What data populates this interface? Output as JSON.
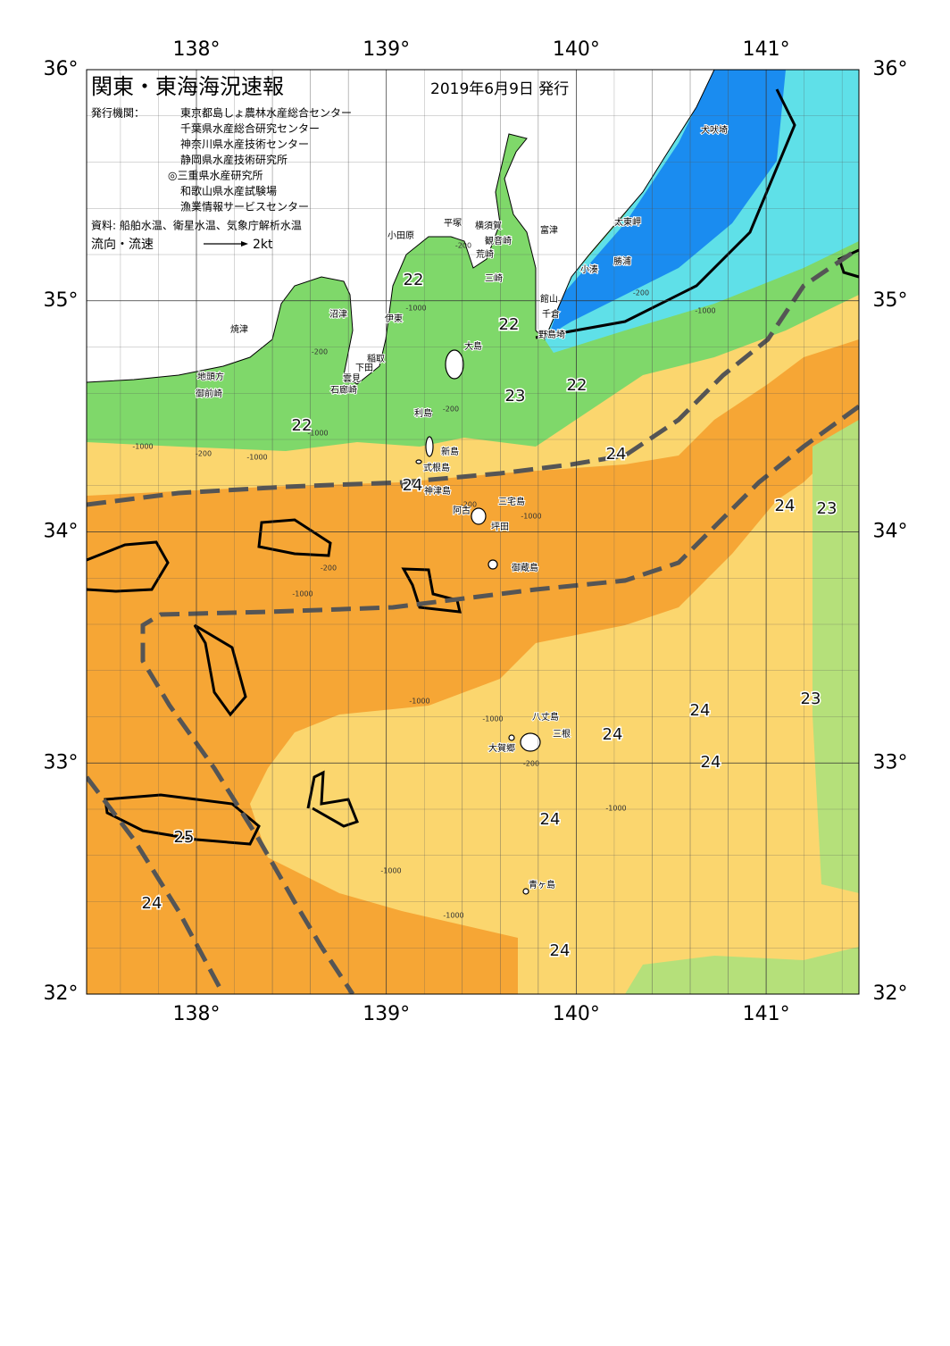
{
  "header": {
    "title": "関東・東海海況速報",
    "date": "2019年6月9日 発行",
    "issuer_label": "発行機関：",
    "issuers": [
      "東京都島しょ農林水産総合センター",
      "千葉県水産総合研究センター",
      "神奈川県水産技術センター",
      "静岡県水産技術研究所",
      "◎三重県水産研究所",
      "和歌山県水産試験場",
      "漁業情報サービスセンター"
    ],
    "source": "資料: 船舶水温、衛星水温、気象庁解析水温",
    "legend_label": "流向・流速",
    "legend_speed": "2kt"
  },
  "grid": {
    "lon_ticks": [
      {
        "value": 138,
        "label": "138°"
      },
      {
        "value": 139,
        "label": "139°"
      },
      {
        "value": 140,
        "label": "140°"
      },
      {
        "value": 141,
        "label": "141°"
      }
    ],
    "lat_ticks": [
      {
        "value": 36,
        "label": "36°"
      },
      {
        "value": 35,
        "label": "35°"
      },
      {
        "value": 34,
        "label": "34°"
      },
      {
        "value": 33,
        "label": "33°"
      },
      {
        "value": 32,
        "label": "32°"
      }
    ]
  },
  "places": [
    "犬吠埼",
    "太東岬",
    "勝浦",
    "小湊",
    "富津",
    "館山",
    "千倉",
    "野島埼",
    "横須賀",
    "観音崎",
    "平塚",
    "荒崎",
    "三崎",
    "小田原",
    "伊東",
    "沼津",
    "稲取",
    "下田",
    "雲見",
    "石廊崎",
    "焼津",
    "地頭方",
    "御前崎",
    "大島",
    "利島",
    "新島",
    "式根島",
    "神津島",
    "三宅島",
    "阿古",
    "坪田",
    "御蔵島",
    "八丈島",
    "三根",
    "大賀郷",
    "青ヶ島"
  ],
  "temperature_labels": [
    "22",
    "22",
    "22",
    "22",
    "23",
    "23",
    "23",
    "24",
    "24",
    "24",
    "24",
    "24",
    "24",
    "24",
    "24",
    "24",
    "25"
  ],
  "depth_labels": [
    "-200",
    "-1000",
    "-200",
    "-1000",
    "-1000",
    "-200",
    "-1000",
    "-200",
    "-200",
    "-1000",
    "-1000",
    "-1000",
    "-200",
    "-1000",
    "-1000",
    "-1000",
    "-200",
    "-1000",
    "-200",
    "-1000"
  ]
}
